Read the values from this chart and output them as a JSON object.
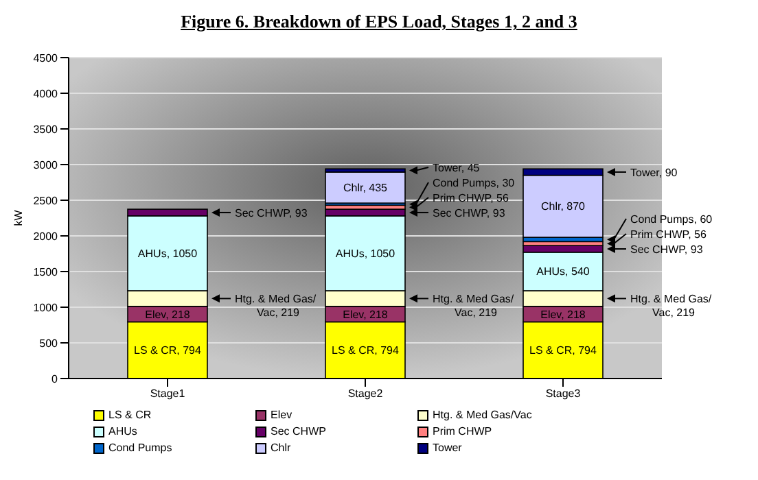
{
  "chart_data": {
    "type": "bar",
    "title": "Figure 6.  Breakdown of EPS Load, Stages 1, 2 and 3",
    "ylabel": "kW",
    "categories": [
      "Stage1",
      "Stage2",
      "Stage3"
    ],
    "stacked": true,
    "ylim": [
      0,
      4500
    ],
    "yticks": [
      0,
      500,
      1000,
      1500,
      2000,
      2500,
      3000,
      3500,
      4000,
      4500
    ],
    "grid": "y",
    "legend": "bottom",
    "series": [
      {
        "name": "LS & CR",
        "color": "#ffff00",
        "values": [
          794,
          794,
          794
        ],
        "value_labels": [
          "LS & CR, 794",
          "LS & CR, 794",
          "LS & CR, 794"
        ]
      },
      {
        "name": "Elev",
        "color": "#993366",
        "values": [
          218,
          218,
          218
        ],
        "value_labels": [
          "Elev, 218",
          "Elev, 218",
          "Elev, 218"
        ]
      },
      {
        "name": "Htg. & Med Gas/Vac",
        "color": "#ffffcc",
        "values": [
          219,
          219,
          219
        ],
        "value_labels": [
          "Htg. & Med Gas/ Vac, 219",
          "Htg. & Med Gas/ Vac, 219",
          "Htg. & Med Gas/ Vac, 219"
        ]
      },
      {
        "name": "AHUs",
        "color": "#ccffff",
        "values": [
          1050,
          1050,
          540
        ],
        "value_labels": [
          "AHUs, 1050",
          "AHUs, 1050",
          "AHUs, 540"
        ]
      },
      {
        "name": "Sec CHWP",
        "color": "#660066",
        "values": [
          93,
          93,
          93
        ],
        "value_labels": [
          "Sec CHWP, 93",
          "Sec CHWP, 93",
          "Sec CHWP, 93"
        ]
      },
      {
        "name": "Prim CHWP",
        "color": "#ff8080",
        "values": [
          null,
          56,
          56
        ],
        "value_labels": [
          null,
          "Prim CHWP, 56",
          "Prim CHWP, 56"
        ]
      },
      {
        "name": "Cond Pumps",
        "color": "#0066cc",
        "values": [
          null,
          30,
          60
        ],
        "value_labels": [
          null,
          "Cond Pumps, 30",
          "Cond Pumps, 60"
        ]
      },
      {
        "name": "Chlr",
        "color": "#ccccff",
        "values": [
          null,
          435,
          870
        ],
        "value_labels": [
          null,
          "Chlr, 435",
          "Chlr, 870"
        ]
      },
      {
        "name": "Tower",
        "color": "#000080",
        "values": [
          null,
          45,
          90
        ],
        "value_labels": [
          null,
          "Tower, 45",
          "Tower, 90"
        ]
      }
    ]
  }
}
